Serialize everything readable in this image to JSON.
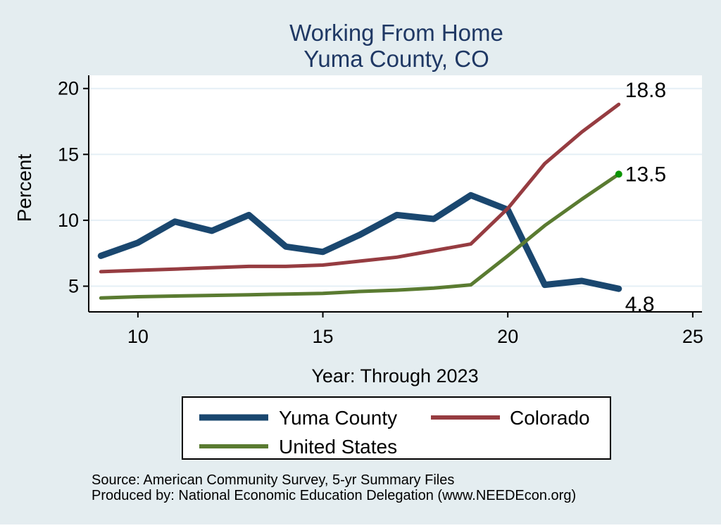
{
  "figure": {
    "title_line1": "Working From Home",
    "title_line2": "Yuma County, CO",
    "source_line1": "Source: American Community Survey, 5-yr Summary Files",
    "source_line2": "Produced by: National Economic Education Delegation (www.NEEDEcon.org)"
  },
  "colors": {
    "background": "#e4edf0",
    "plot_background": "#ffffff",
    "gridline": "#e5eff6",
    "axis": "#000000",
    "title": "#1f3864",
    "text": "#000000",
    "legend_border": "#000000",
    "legend_background": "#ffffff"
  },
  "chart_data": {
    "type": "line",
    "title": "Working From Home - Yuma County, CO",
    "xlabel": "Year: Through 2023",
    "ylabel": "Percent",
    "x": [
      9,
      10,
      11,
      12,
      13,
      14,
      15,
      16,
      17,
      18,
      19,
      20,
      21,
      22,
      23
    ],
    "x_ticks": [
      "10",
      "15",
      "20",
      "25"
    ],
    "x_tick_values": [
      10,
      15,
      20,
      25
    ],
    "y_ticks": [
      "5",
      "10",
      "15",
      "20"
    ],
    "y_tick_values": [
      5,
      10,
      15,
      20
    ],
    "x_range": [
      8.67,
      25.25
    ],
    "y_range": [
      3.05,
      21.0
    ],
    "grid": "horizontal-only",
    "legend_position": "bottom",
    "series": [
      {
        "name": "Yuma County",
        "color": "#1a476f",
        "line_width": 9,
        "values": [
          7.3,
          8.3,
          9.9,
          9.2,
          10.4,
          8.0,
          7.6,
          8.9,
          10.4,
          10.1,
          11.9,
          10.8,
          5.1,
          5.4,
          4.8
        ],
        "end_label": "4.8",
        "end_label_dy": 22,
        "end_marker": false
      },
      {
        "name": "Colorado",
        "color": "#963c41",
        "line_width": 5,
        "values": [
          6.1,
          6.2,
          6.3,
          6.4,
          6.5,
          6.5,
          6.6,
          6.9,
          7.2,
          7.7,
          8.2,
          10.9,
          14.3,
          16.7,
          18.8
        ],
        "end_label": "18.8",
        "end_label_dy": -20,
        "end_marker": false
      },
      {
        "name": "United States",
        "color": "#5a7b31",
        "line_width": 5,
        "values": [
          4.1,
          4.2,
          4.25,
          4.3,
          4.35,
          4.4,
          4.45,
          4.6,
          4.7,
          4.85,
          5.1,
          7.3,
          9.6,
          11.6,
          13.5
        ],
        "end_label": "13.5",
        "end_label_dy": 0,
        "end_marker": true,
        "marker_color": "#0a9400"
      }
    ]
  }
}
